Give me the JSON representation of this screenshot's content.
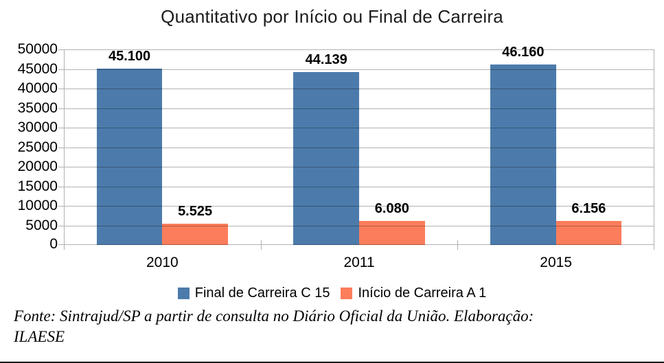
{
  "chart_data": {
    "type": "bar",
    "title": "Quantitativo por Início ou Final de Carreira",
    "categories": [
      "2010",
      "2011",
      "2015"
    ],
    "series": [
      {
        "name": "Final de Carreira C 15",
        "color": "#4c7bab",
        "values": [
          45100,
          44139,
          46160
        ],
        "labels": [
          "45.100",
          "44.139",
          "46.160"
        ]
      },
      {
        "name": "Início de Carreira A 1",
        "color": "#fc7d5b",
        "values": [
          5525,
          6080,
          6156
        ],
        "labels": [
          "5.525",
          "6.080",
          "6.156"
        ]
      }
    ],
    "xlabel": "",
    "ylabel": "",
    "ylim": [
      0,
      50000
    ],
    "ytick_step": 5000,
    "yticks": [
      "50000",
      "45000",
      "40000",
      "35000",
      "30000",
      "25000",
      "20000",
      "15000",
      "10000",
      "5000",
      "0"
    ],
    "grid": "horizontal",
    "legend_position": "bottom"
  },
  "footer": {
    "lines": [
      "Fonte: Sintrajud/SP a partir de consulta no Diário Oficial da União. Elaboração:",
      "ILAESE"
    ]
  }
}
